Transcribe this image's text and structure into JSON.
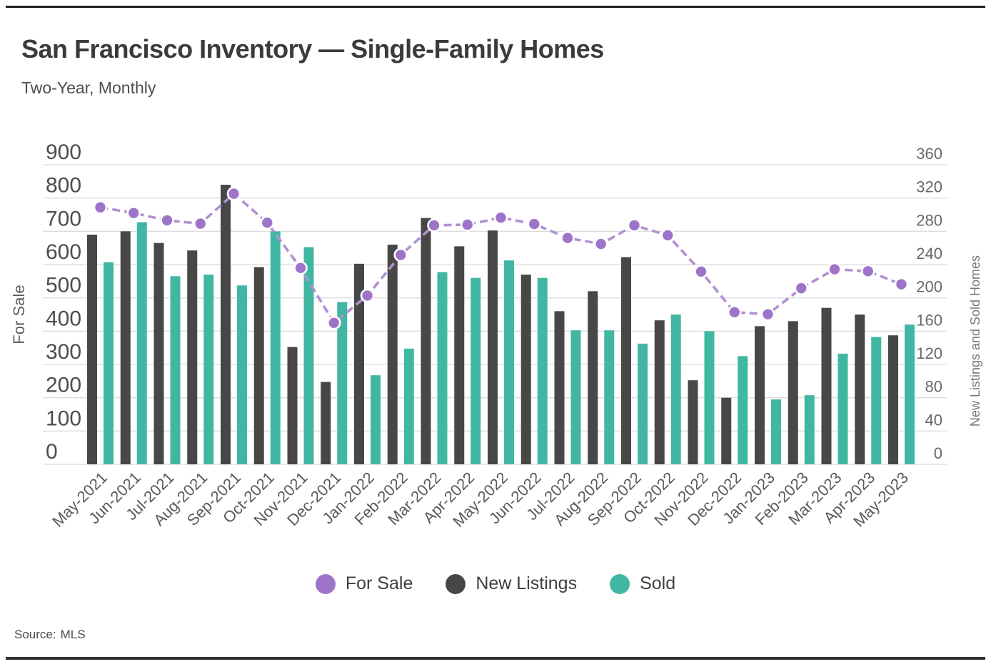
{
  "header": {
    "title": "San Francisco Inventory — Single-Family Homes",
    "subtitle": "Two-Year, Monthly"
  },
  "footer": {
    "source_label": "Source:",
    "source_value": "MLS"
  },
  "colors": {
    "for_sale": "#9e74c8",
    "for_sale_line": "#b191d2",
    "new_listings": "#474747",
    "sold": "#41b7a3",
    "gridline": "#dcdcdc",
    "tick_text_left": "#4d4d4d",
    "tick_text_right": "#696969",
    "month_text": "#5a5a5a",
    "axis_title_text": "#5e5e5e"
  },
  "legend": {
    "items": [
      {
        "label": "For Sale",
        "color_key": "for_sale"
      },
      {
        "label": "New Listings",
        "color_key": "new_listings"
      },
      {
        "label": "Sold",
        "color_key": "sold"
      }
    ]
  },
  "chart_data": {
    "type": "combo-bar-line",
    "title": "San Francisco Inventory — Single-Family Homes",
    "subtitle": "Two-Year, Monthly",
    "grid": "horizontal",
    "legend_position": "bottom",
    "categories": [
      "May-2021",
      "Jun-2021",
      "Jul-2021",
      "Aug-2021",
      "Sep-2021",
      "Oct-2021",
      "Nov-2021",
      "Dec-2021",
      "Jan-2022",
      "Feb-2022",
      "Mar-2022",
      "Apr-2022",
      "May-2022",
      "Jun-2022",
      "Jul-2022",
      "Aug-2022",
      "Sep-2022",
      "Oct-2022",
      "Nov-2022",
      "Dec-2022",
      "Jan-2023",
      "Feb-2023",
      "Mar-2023",
      "Apr-2023",
      "May-2023"
    ],
    "left_axis": {
      "title": "For Sale",
      "min": 0,
      "max": 900,
      "step": 100
    },
    "right_axis": {
      "title": "New Listings and Sold Homes",
      "min": 0,
      "max": 360,
      "step": 40
    },
    "series": [
      {
        "name": "For Sale",
        "type": "line",
        "axis": "left",
        "values": [
          772,
          755,
          733,
          723,
          813,
          726,
          590,
          425,
          507,
          629,
          718,
          720,
          741,
          722,
          680,
          662,
          718,
          688,
          579,
          457,
          451,
          529,
          586,
          580,
          541
        ]
      },
      {
        "name": "New Listings",
        "type": "bar",
        "axis": "right",
        "values": [
          276,
          280,
          266,
          257,
          336,
          237,
          141,
          99,
          241,
          264,
          296,
          262,
          281,
          228,
          184,
          208,
          249,
          173,
          101,
          80,
          166,
          172,
          188,
          180,
          155
        ]
      },
      {
        "name": "Sold",
        "type": "bar",
        "axis": "right",
        "values": [
          243,
          291,
          226,
          228,
          215,
          280,
          261,
          195,
          107,
          139,
          231,
          224,
          245,
          224,
          161,
          161,
          145,
          180,
          160,
          130,
          78,
          83,
          133,
          153,
          168
        ]
      }
    ]
  }
}
